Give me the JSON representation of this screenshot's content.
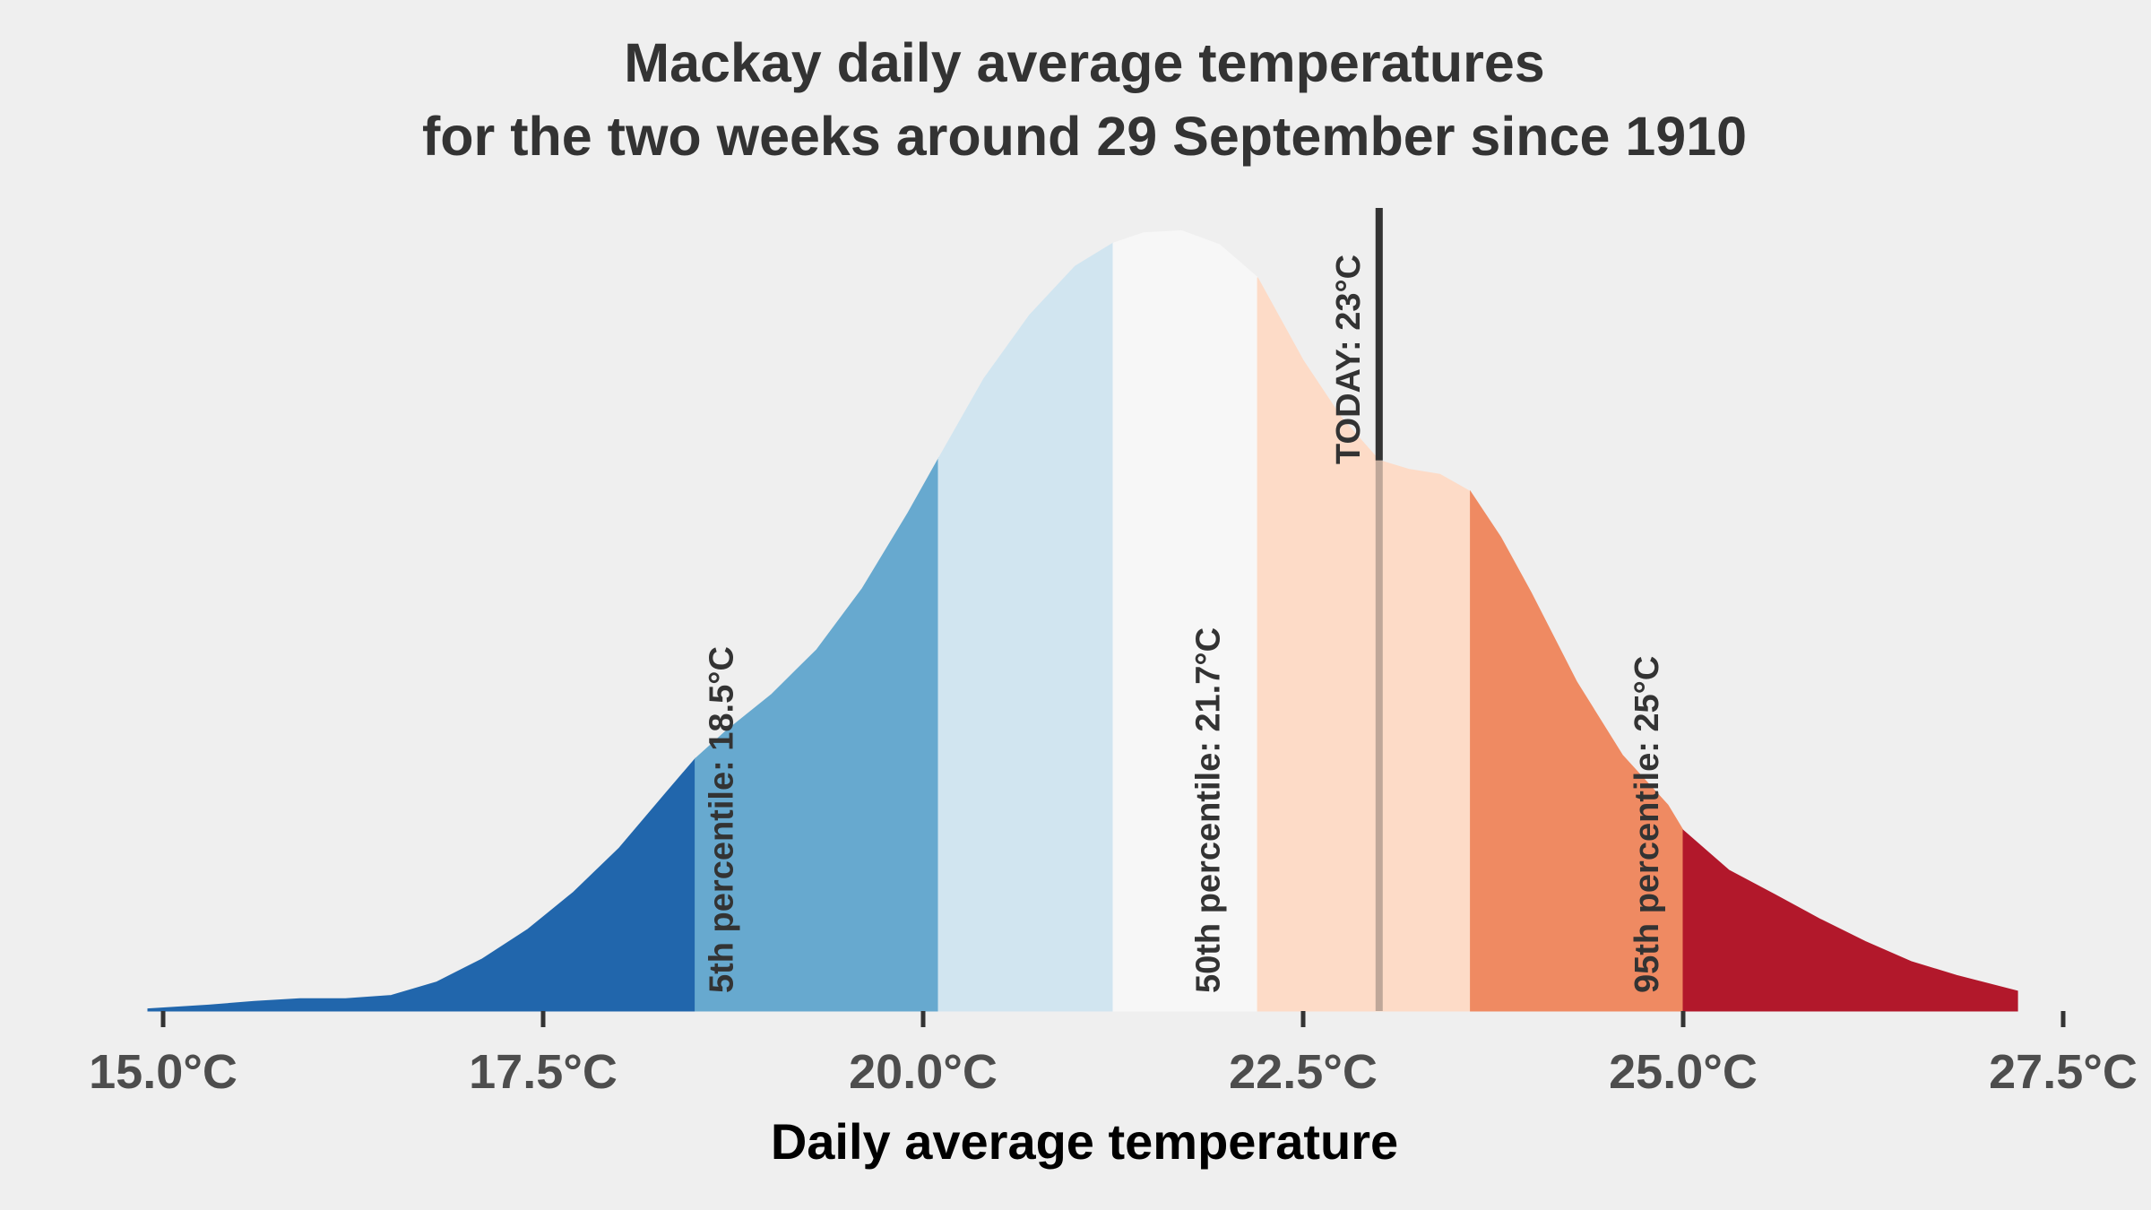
{
  "chart_data": {
    "type": "area",
    "title": [
      "Mackay daily average temperatures",
      "for the two weeks around 29 September since 1910"
    ],
    "xlabel": "Daily average temperature",
    "ylabel": "",
    "xlim": [
      15.0,
      27.5
    ],
    "x_ticks": [
      15.0,
      17.5,
      20.0,
      22.5,
      25.0,
      27.5
    ],
    "x_tick_labels": [
      "15.0°C",
      "17.5°C",
      "20.0°C",
      "22.5°C",
      "25.0°C",
      "27.5°C"
    ],
    "density": {
      "x": [
        14.9,
        15.3,
        15.6,
        15.9,
        16.2,
        16.5,
        16.8,
        17.1,
        17.4,
        17.7,
        18.0,
        18.3,
        18.5,
        18.7,
        19.0,
        19.3,
        19.6,
        19.9,
        20.1,
        20.4,
        20.7,
        21.0,
        21.25,
        21.45,
        21.7,
        21.95,
        22.2,
        22.5,
        22.75,
        23.0,
        23.2,
        23.4,
        23.6,
        23.8,
        24.0,
        24.3,
        24.6,
        24.9,
        25.0,
        25.3,
        25.6,
        25.9,
        26.2,
        26.5,
        26.8,
        27.2
      ],
      "y": [
        0.004,
        0.011,
        0.018,
        0.023,
        0.023,
        0.029,
        0.054,
        0.097,
        0.152,
        0.221,
        0.303,
        0.403,
        0.469,
        0.52,
        0.588,
        0.672,
        0.786,
        0.926,
        1.027,
        1.176,
        1.294,
        1.385,
        1.428,
        1.447,
        1.451,
        1.425,
        1.364,
        1.21,
        1.104,
        1.024,
        1.007,
        0.998,
        0.966,
        0.881,
        0.778,
        0.612,
        0.476,
        0.383,
        0.336,
        0.262,
        0.217,
        0.171,
        0.129,
        0.092,
        0.066,
        0.037
      ]
    },
    "bands": [
      {
        "from": 14.9,
        "to": 18.5,
        "color": "#2166ac"
      },
      {
        "from": 18.5,
        "to": 20.1,
        "color": "#67a9cf"
      },
      {
        "from": 20.1,
        "to": 21.25,
        "color": "#d1e5f0"
      },
      {
        "from": 21.25,
        "to": 22.2,
        "color": "#f7f7f7"
      },
      {
        "from": 22.2,
        "to": 23.6,
        "color": "#fddbc7"
      },
      {
        "from": 23.6,
        "to": 25.0,
        "color": "#ef8a62"
      },
      {
        "from": 25.0,
        "to": 27.2,
        "color": "#b2182b"
      }
    ],
    "percentiles": [
      {
        "x": 18.5,
        "label": "5th percentile:  18.5°C"
      },
      {
        "x": 21.7,
        "label": "50th percentile: 21.7°C"
      },
      {
        "x": 25.0,
        "label": "95th percentile:  25°C"
      }
    ],
    "today": {
      "x": 23.0,
      "label": "TODAY:  23°C",
      "color": "#333333"
    }
  }
}
